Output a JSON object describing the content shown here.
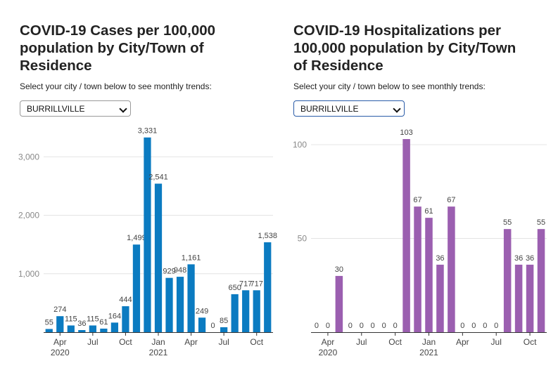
{
  "colors": {
    "cases_bar": "#0b7bc1",
    "hosp_bar": "#9b5fb0",
    "grid": "#e4e4e4",
    "axis": "#333333"
  },
  "left": {
    "title": "COVID-19 Cases per 100,000 population by City/Town of Residence",
    "instruction": "Select your city / town below to see monthly trends:",
    "select_value": "BURRILLVILLE"
  },
  "right": {
    "title": "COVID-19 Hospitalizations per 100,000 population by City/Town of Residence",
    "instruction": "Select your city / town below to see monthly trends:",
    "select_value": "BURRILLVILLE"
  },
  "chart_data": [
    {
      "type": "bar",
      "title": "COVID-19 Cases per 100,000 population by City/Town of Residence",
      "categories": [
        "Mar 2020",
        "Apr 2020",
        "May 2020",
        "Jun 2020",
        "Jul 2020",
        "Aug 2020",
        "Sep 2020",
        "Oct 2020",
        "Nov 2020",
        "Dec 2020",
        "Jan 2021",
        "Feb 2021",
        "Mar 2021",
        "Apr 2021",
        "May 2021",
        "Jun 2021",
        "Jul 2021",
        "Aug 2021",
        "Sep 2021",
        "Oct 2021",
        "Nov 2021"
      ],
      "values": [
        55,
        274,
        115,
        36,
        115,
        61,
        164,
        444,
        1499,
        3331,
        2541,
        929,
        948,
        1161,
        249,
        0,
        85,
        650,
        717,
        717,
        1538
      ],
      "labels": [
        "55",
        "274",
        "115",
        "36",
        "115",
        "61",
        "164",
        "444",
        "1,499",
        "3,331",
        "2,541",
        "929",
        "948",
        "1,161",
        "249",
        "0",
        "85",
        "650",
        "717",
        "717",
        "1,538"
      ],
      "ylim": [
        0,
        3400
      ],
      "yticks": [
        1000,
        2000,
        3000
      ],
      "ytick_labels": [
        "1,000",
        "2,000",
        "3,000"
      ],
      "xticks": [
        {
          "index": 1,
          "label": "Apr",
          "sub": "2020"
        },
        {
          "index": 4,
          "label": "Jul",
          "sub": ""
        },
        {
          "index": 7,
          "label": "Oct",
          "sub": ""
        },
        {
          "index": 10,
          "label": "Jan",
          "sub": "2021"
        },
        {
          "index": 13,
          "label": "Apr",
          "sub": ""
        },
        {
          "index": 16,
          "label": "Jul",
          "sub": ""
        },
        {
          "index": 19,
          "label": "Oct",
          "sub": ""
        }
      ],
      "grid": true
    },
    {
      "type": "bar",
      "title": "COVID-19 Hospitalizations per 100,000 population by City/Town of Residence",
      "categories": [
        "Mar 2020",
        "Apr 2020",
        "May 2020",
        "Jun 2020",
        "Jul 2020",
        "Aug 2020",
        "Sep 2020",
        "Oct 2020",
        "Nov 2020",
        "Dec 2020",
        "Jan 2021",
        "Feb 2021",
        "Mar 2021",
        "Apr 2021",
        "May 2021",
        "Jun 2021",
        "Jul 2021",
        "Aug 2021",
        "Sep 2021",
        "Oct 2021",
        "Nov 2021"
      ],
      "values": [
        0,
        0,
        30,
        0,
        0,
        0,
        0,
        0,
        103,
        67,
        61,
        36,
        67,
        0,
        0,
        0,
        0,
        55,
        36,
        36,
        55
      ],
      "labels": [
        "0",
        "0",
        "30",
        "0",
        "0",
        "0",
        "0",
        "0",
        "103",
        "67",
        "61",
        "36",
        "67",
        "0",
        "0",
        "0",
        "0",
        "55",
        "36",
        "36",
        "55"
      ],
      "ylim": [
        0,
        106
      ],
      "yticks": [
        50,
        100
      ],
      "ytick_labels": [
        "50",
        "100"
      ],
      "xticks": [
        {
          "index": 1,
          "label": "Apr",
          "sub": "2020"
        },
        {
          "index": 4,
          "label": "Jul",
          "sub": ""
        },
        {
          "index": 7,
          "label": "Oct",
          "sub": ""
        },
        {
          "index": 10,
          "label": "Jan",
          "sub": "2021"
        },
        {
          "index": 13,
          "label": "Apr",
          "sub": ""
        },
        {
          "index": 16,
          "label": "Jul",
          "sub": ""
        },
        {
          "index": 19,
          "label": "Oct",
          "sub": ""
        }
      ],
      "grid": true
    }
  ]
}
